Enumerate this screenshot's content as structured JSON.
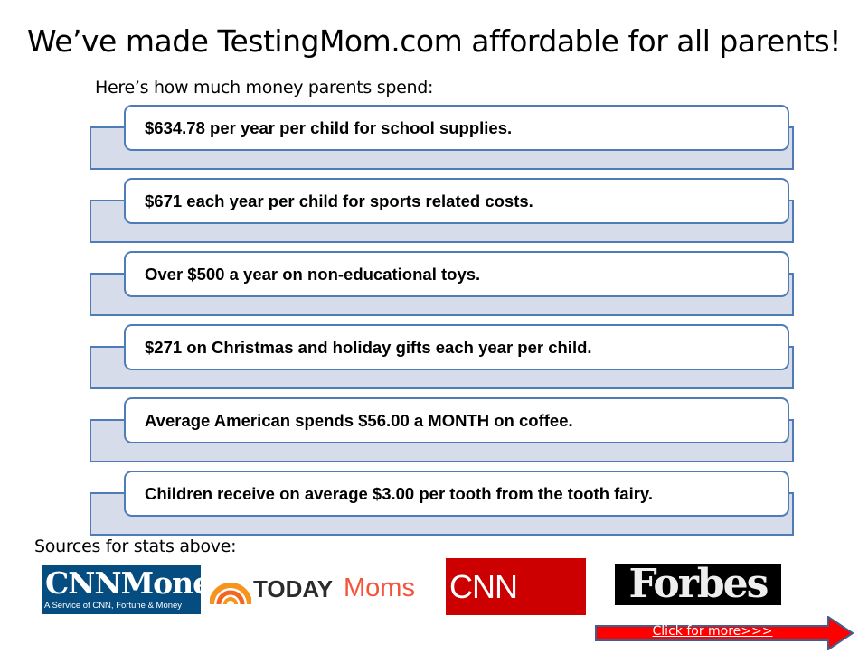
{
  "title": "We’ve made TestingMom.com affordable for all parents!",
  "subtitle": "Here’s how much money parents spend:",
  "stats": [
    "$634.78 per year per child for school supplies.",
    "$671 each year per child for sports related costs.",
    "Over $500 a year on non-educational toys.",
    "$271 on Christmas and holiday gifts each year per child.",
    "Average American spends $56.00 a MONTH on coffee.",
    "Children receive on average $3.00 per tooth from the tooth fairy."
  ],
  "sources_label": "Sources for stats above:",
  "logos": {
    "cnn_money": {
      "name": "CNNMoney",
      "tagline": "A Service of CNN, Fortune & Money"
    },
    "today_moms": {
      "brand": "TODAY",
      "section": "Moms"
    },
    "cnn_living": {
      "name": "CNN Living"
    },
    "forbes": {
      "name": "Forbes"
    }
  },
  "cta": {
    "label": "Click for more>>>"
  },
  "colors": {
    "border": "#4f7cb6",
    "back_fill": "#d6dcea",
    "arrow": "#ff0000",
    "arrow_border": "#3f5f8f"
  }
}
